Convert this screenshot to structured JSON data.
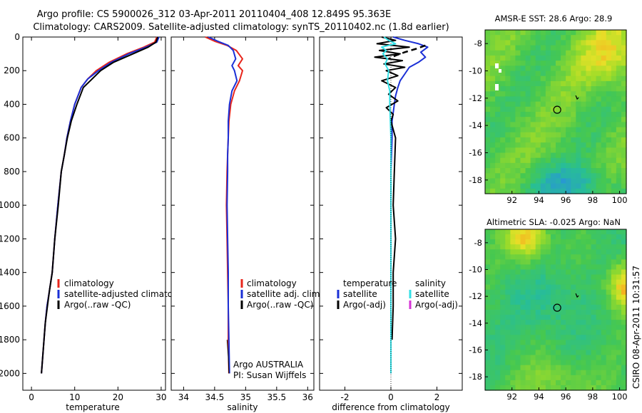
{
  "header": {
    "line1": "Argo profile: CS 5900026_312 03-Apr-2011 20110404_408 12.849S 95.363E",
    "line2": "Climatology: CARS2009. Satellite-adjusted climatology: synTS_20110402.nc (1.8d earlier)"
  },
  "side_stamp": "CSIRO 08-Apr-2011 10:31:57",
  "colors": {
    "red": "#e8261c",
    "blue": "#1a2fd6",
    "black": "#000000",
    "cyan": "#33e0e6",
    "magenta": "#d633d6"
  },
  "chart_data": [
    {
      "id": "temperature",
      "type": "line",
      "xlabel": "temperature",
      "ylabel": "",
      "xlim": [
        -2,
        31
      ],
      "ylim": [
        0,
        2100
      ],
      "y_reversed": true,
      "xticks": [
        0,
        10,
        20,
        30
      ],
      "xtick_labels": [
        "0",
        "10",
        "20",
        "30"
      ],
      "yticks": [
        0,
        200,
        400,
        600,
        800,
        1000,
        1200,
        1400,
        1600,
        1800,
        2000
      ],
      "ytick_labels": [
        "0",
        "200",
        "400",
        "600",
        "800",
        "1000",
        "1200",
        "1400",
        "1600",
        "1800",
        "2000"
      ],
      "legend": [
        {
          "label": "climatology",
          "color": "#e8261c"
        },
        {
          "label": "satellite-adjusted climatology",
          "color": "#1a2fd6"
        },
        {
          "label": "Argo(..raw -QC)",
          "color": "#000000"
        }
      ],
      "series": [
        {
          "name": "climatology",
          "color": "#e8261c",
          "width": 2,
          "x": [
            29.0,
            28.5,
            26,
            22,
            18,
            15,
            13,
            11.5,
            10,
            9,
            8.2,
            7.6,
            6.9,
            6.1,
            5.4,
            4.8,
            4.2,
            3.6,
            3.2,
            2.9,
            2.6,
            2.3
          ],
          "y": [
            0,
            30,
            60,
            100,
            150,
            200,
            250,
            300,
            400,
            500,
            600,
            700,
            800,
            1000,
            1200,
            1400,
            1500,
            1600,
            1700,
            1800,
            1900,
            2000
          ]
        },
        {
          "name": "satellite-adjusted climatology",
          "color": "#1a2fd6",
          "width": 2,
          "x": [
            29.5,
            29,
            26.5,
            22.5,
            18.5,
            15.5,
            13,
            11.5,
            10,
            9,
            8.2,
            7.6,
            6.9,
            6.1,
            5.4,
            4.8,
            4.2,
            3.6,
            3.2,
            2.9,
            2.6,
            2.3
          ],
          "y": [
            0,
            30,
            60,
            100,
            150,
            200,
            250,
            300,
            400,
            500,
            600,
            700,
            800,
            1000,
            1200,
            1400,
            1500,
            1600,
            1700,
            1800,
            1900,
            2000
          ]
        },
        {
          "name": "Argo(..raw -QC)",
          "color": "#000000",
          "width": 2,
          "x": [
            29.2,
            28.8,
            27,
            23.5,
            19,
            16,
            14,
            12,
            10.5,
            9.2,
            8.3,
            7.6,
            6.9,
            6.2,
            5.4,
            4.8,
            4.2,
            3.7,
            3.2,
            2.9,
            2.6,
            2.3
          ],
          "y": [
            0,
            30,
            60,
            100,
            150,
            200,
            250,
            300,
            400,
            500,
            600,
            700,
            800,
            1000,
            1200,
            1400,
            1500,
            1600,
            1700,
            1800,
            1900,
            2000
          ]
        }
      ]
    },
    {
      "id": "salinity",
      "type": "line",
      "xlabel": "salinity",
      "ylabel": "",
      "xlim": [
        33.8,
        36.1
      ],
      "ylim": [
        0,
        2100
      ],
      "y_reversed": true,
      "xticks": [
        34,
        34.5,
        35,
        35.5,
        36
      ],
      "xtick_labels": [
        "34",
        "34.5",
        "35",
        "35.5",
        "36"
      ],
      "legend": [
        {
          "label": "climatology",
          "color": "#e8261c"
        },
        {
          "label": "satellite adj. clim.",
          "color": "#1a2fd6"
        },
        {
          "label": "Argo(..raw -QC)",
          "color": "#000000"
        }
      ],
      "annotations": [
        "Argo AUSTRALIA",
        "PI: Susan Wijffels"
      ],
      "series": [
        {
          "name": "climatology",
          "color": "#e8261c",
          "width": 2,
          "x": [
            34.35,
            34.5,
            34.7,
            34.85,
            34.95,
            34.88,
            34.95,
            34.9,
            34.82,
            34.76,
            34.73,
            34.72,
            34.71,
            34.7,
            34.69,
            34.7,
            34.71,
            34.72,
            34.72,
            34.73
          ],
          "y": [
            0,
            25,
            50,
            80,
            130,
            170,
            200,
            260,
            320,
            400,
            500,
            600,
            700,
            800,
            1000,
            1200,
            1400,
            1600,
            1800,
            2000
          ]
        },
        {
          "name": "satellite adj. clim.",
          "color": "#1a2fd6",
          "width": 2,
          "x": [
            34.4,
            34.55,
            34.72,
            34.8,
            34.84,
            34.78,
            34.82,
            34.86,
            34.78,
            34.74,
            34.72,
            34.72,
            34.71,
            34.71,
            34.7,
            34.71,
            34.72,
            34.72,
            34.73,
            34.74
          ],
          "y": [
            0,
            25,
            50,
            80,
            130,
            170,
            200,
            260,
            320,
            400,
            500,
            600,
            700,
            800,
            1000,
            1200,
            1400,
            1600,
            1800,
            2000
          ]
        },
        {
          "name": "Argo(..raw -QC)",
          "color": "#000000",
          "width": 1,
          "x": [
            34.7,
            34.72,
            34.73
          ],
          "y": [
            1800,
            1900,
            2000
          ]
        }
      ]
    },
    {
      "id": "difference",
      "type": "line",
      "xlabel": "difference from climatology",
      "ylabel": "",
      "xlim": [
        -3.1,
        3.1
      ],
      "ylim": [
        0,
        2100
      ],
      "y_reversed": true,
      "xticks": [
        -2,
        0,
        2
      ],
      "xtick_labels": [
        "-2",
        "0",
        "2"
      ],
      "legend_left_title": "temperature",
      "legend_right_title": "salinity",
      "legend": [
        {
          "label": "satellite",
          "color": "#1a2fd6"
        },
        {
          "label": "Argo(-adj)",
          "color": "#000000"
        },
        {
          "label": "satellite",
          "color": "#33e0e6"
        },
        {
          "label": "Argo(-adj)",
          "color": "#d633d6"
        }
      ],
      "series": [
        {
          "name": "temperature satellite",
          "color": "#1a2fd6",
          "width": 2,
          "x": [
            0.1,
            0.6,
            1.2,
            1.6,
            1.3,
            1.5,
            1.2,
            0.8,
            0.6,
            0.4,
            0.3,
            0.2,
            0.15,
            0.1,
            0.05,
            0.05,
            0.0,
            0.0,
            0.0,
            0.0
          ],
          "y": [
            0,
            20,
            40,
            60,
            90,
            120,
            150,
            180,
            220,
            260,
            300,
            350,
            400,
            450,
            500,
            600,
            800,
            1200,
            1600,
            2000
          ]
        },
        {
          "name": "temperature Argo(-adj)",
          "color": "#000000",
          "width": 2,
          "x": [
            -0.4,
            0.2,
            -0.6,
            0.8,
            -0.5,
            0.4,
            -0.7,
            0.5,
            -0.3,
            0.6,
            -0.2,
            0.3,
            -0.4,
            0.2,
            -0.1,
            0.3,
            -0.2,
            0.1,
            0.0,
            0.2,
            0.15,
            0.1,
            0.2,
            0.1,
            0.1,
            0.05
          ],
          "y": [
            0,
            20,
            40,
            60,
            80,
            100,
            120,
            140,
            160,
            180,
            200,
            230,
            260,
            300,
            340,
            380,
            420,
            460,
            500,
            600,
            800,
            1000,
            1200,
            1400,
            1600,
            1800
          ]
        },
        {
          "name": "temperature Argo dashed",
          "color": "#000000",
          "width": 2.5,
          "dash": "8,5",
          "x": [
            1.5,
            1.1,
            0.6,
            0.2,
            -0.1
          ],
          "y": [
            50,
            70,
            90,
            110,
            130
          ]
        },
        {
          "name": "salinity satellite",
          "color": "#33e0e6",
          "width": 2,
          "x": [
            -0.3,
            -0.1,
            0.2,
            -0.4,
            -0.2,
            -0.35,
            -0.15,
            -0.25,
            -0.1,
            -0.15,
            -0.05,
            -0.05,
            0.0,
            0.0,
            0.0,
            0.0
          ],
          "y": [
            0,
            20,
            40,
            60,
            80,
            100,
            130,
            160,
            200,
            260,
            320,
            400,
            600,
            1000,
            1600,
            2000
          ]
        }
      ]
    },
    {
      "id": "sst_map",
      "type": "heatmap",
      "title": "AMSR-E SST: 28.6 Argo: 28.9",
      "xlim": [
        90,
        100.5
      ],
      "ylim": [
        -19,
        -7
      ],
      "xticks": [
        92,
        94,
        96,
        98,
        100
      ],
      "xtick_labels": [
        "92",
        "94",
        "96",
        "98",
        "100"
      ],
      "yticks": [
        -8,
        -10,
        -12,
        -14,
        -16,
        -18
      ],
      "ytick_labels": [
        "-8",
        "-10",
        "-12",
        "-14",
        "-16",
        "-18"
      ],
      "float_position": {
        "lon": 95.363,
        "lat": -12.849
      }
    },
    {
      "id": "sla_map",
      "type": "heatmap",
      "title": "Altimetric SLA: -0.025 Argo: NaN",
      "xlim": [
        90,
        100.5
      ],
      "ylim": [
        -19,
        -7
      ],
      "xticks": [
        92,
        94,
        96,
        98,
        100
      ],
      "xtick_labels": [
        "92",
        "94",
        "96",
        "98",
        "100"
      ],
      "yticks": [
        -8,
        -10,
        -12,
        -14,
        -16,
        -18
      ],
      "ytick_labels": [
        "-8",
        "-10",
        "-12",
        "-14",
        "-16",
        "-18"
      ],
      "float_position": {
        "lon": 95.363,
        "lat": -12.849
      }
    }
  ]
}
